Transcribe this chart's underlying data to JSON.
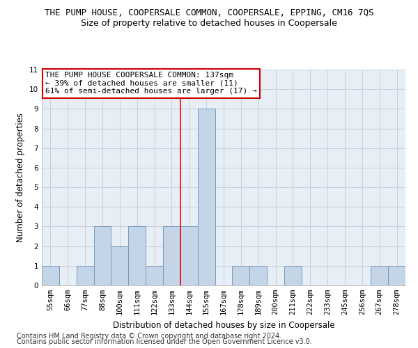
{
  "title": "THE PUMP HOUSE, COOPERSALE COMMON, COOPERSALE, EPPING, CM16 7QS",
  "subtitle": "Size of property relative to detached houses in Coopersale",
  "xlabel": "Distribution of detached houses by size in Coopersale",
  "ylabel": "Number of detached properties",
  "categories": [
    "55sqm",
    "66sqm",
    "77sqm",
    "88sqm",
    "100sqm",
    "111sqm",
    "122sqm",
    "133sqm",
    "144sqm",
    "155sqm",
    "167sqm",
    "178sqm",
    "189sqm",
    "200sqm",
    "211sqm",
    "222sqm",
    "233sqm",
    "245sqm",
    "256sqm",
    "267sqm",
    "278sqm"
  ],
  "values": [
    1,
    0,
    1,
    3,
    2,
    3,
    1,
    3,
    3,
    9,
    0,
    1,
    1,
    0,
    1,
    0,
    0,
    0,
    0,
    1,
    1
  ],
  "bar_color": "#c5d5e8",
  "bar_edge_color": "#7799bb",
  "red_line_index": 7.5,
  "ylim": [
    0,
    11
  ],
  "yticks": [
    0,
    1,
    2,
    3,
    4,
    5,
    6,
    7,
    8,
    9,
    10,
    11
  ],
  "annotation_text": "THE PUMP HOUSE COOPERSALE COMMON: 137sqm\n← 39% of detached houses are smaller (11)\n61% of semi-detached houses are larger (17) →",
  "annotation_box_color": "#ffffff",
  "annotation_box_edge": "#cc0000",
  "footnote1": "Contains HM Land Registry data © Crown copyright and database right 2024.",
  "footnote2": "Contains public sector information licensed under the Open Government Licence v3.0.",
  "bg_color": "#ffffff",
  "plot_bg_color": "#e8eef5",
  "grid_color": "#c8d0dc",
  "title_fontsize": 9,
  "subtitle_fontsize": 9,
  "axis_label_fontsize": 8.5,
  "tick_fontsize": 7.5,
  "annotation_fontsize": 8,
  "footnote_fontsize": 7
}
